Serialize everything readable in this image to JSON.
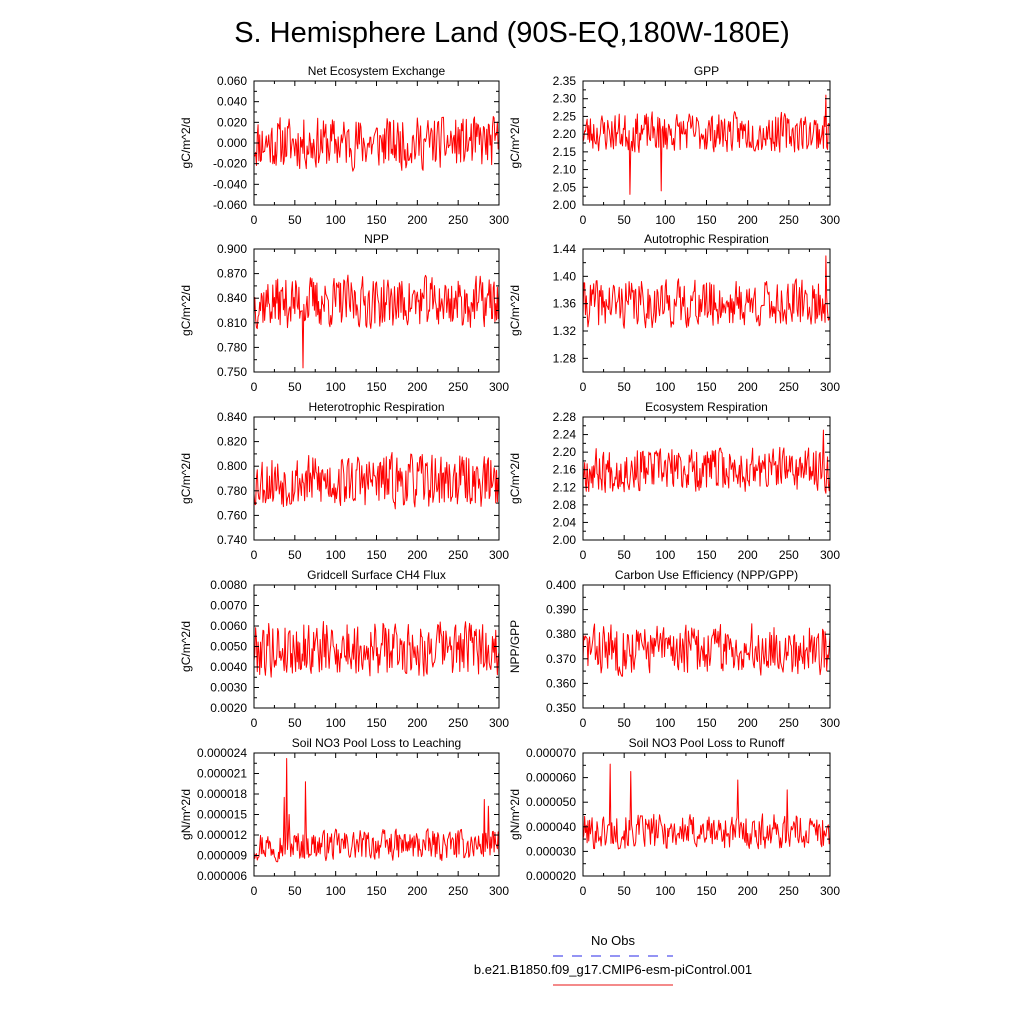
{
  "page": {
    "title": "S. Hemisphere Land (90S-EQ,180W-180E)",
    "legend": [
      {
        "label": "No Obs",
        "color": "#5555ee",
        "style": "dashed"
      },
      {
        "label": "b.e21.B1850.f09_g17.CMIP6-esm-piControl.001",
        "color": "#ee4444",
        "style": "solid"
      }
    ],
    "line_color": "#ff0000"
  },
  "chart_data": [
    {
      "type": "line",
      "title": "Net Ecosystem Exchange",
      "xlabel": "",
      "ylabel": "gC/m^2/d",
      "xlim": [
        0,
        300
      ],
      "xticks": [
        "0",
        "50",
        "100",
        "150",
        "200",
        "250",
        "300"
      ],
      "ylim": [
        -0.06,
        0.06
      ],
      "yticks": [
        "-0.060",
        "-0.040",
        "-0.020",
        "0.000",
        "0.020",
        "0.040",
        "0.060"
      ],
      "series": [
        {
          "name": "b.e21.B1850.f09_g17.CMIP6-esm-piControl.001",
          "mean": 0.0,
          "amp": 0.016,
          "min": -0.043,
          "max": 0.044,
          "seed": 11,
          "spikes": []
        }
      ]
    },
    {
      "type": "line",
      "title": "GPP",
      "xlabel": "",
      "ylabel": "gC/m^2/d",
      "xlim": [
        0,
        300
      ],
      "xticks": [
        "0",
        "50",
        "100",
        "150",
        "200",
        "250",
        "300"
      ],
      "ylim": [
        2.0,
        2.35
      ],
      "yticks": [
        "2.00",
        "2.05",
        "2.10",
        "2.15",
        "2.20",
        "2.25",
        "2.30",
        "2.35"
      ],
      "series": [
        {
          "name": "b.e21.B1850.f09_g17.CMIP6-esm-piControl.001",
          "mean": 2.205,
          "amp": 0.035,
          "min": 2.03,
          "max": 2.315,
          "seed": 23,
          "spikes": [
            [
              295,
              2.31
            ],
            [
              57,
              2.03
            ],
            [
              95,
              2.04
            ]
          ]
        }
      ]
    },
    {
      "type": "line",
      "title": "NPP",
      "xlabel": "",
      "ylabel": "gC/m^2/d",
      "xlim": [
        0,
        300
      ],
      "xticks": [
        "0",
        "50",
        "100",
        "150",
        "200",
        "250",
        "300"
      ],
      "ylim": [
        0.75,
        0.9
      ],
      "yticks": [
        "0.750",
        "0.780",
        "0.810",
        "0.840",
        "0.870",
        "0.900"
      ],
      "series": [
        {
          "name": "b.e21.B1850.f09_g17.CMIP6-esm-piControl.001",
          "mean": 0.835,
          "amp": 0.02,
          "min": 0.755,
          "max": 0.89,
          "seed": 37,
          "spikes": [
            [
              60,
              0.755
            ]
          ]
        }
      ]
    },
    {
      "type": "line",
      "title": "Autotrophic Respiration",
      "xlabel": "",
      "ylabel": "gC/m^2/d",
      "xlim": [
        0,
        300
      ],
      "xticks": [
        "0",
        "50",
        "100",
        "150",
        "200",
        "250",
        "300"
      ],
      "ylim": [
        1.26,
        1.44
      ],
      "yticks": [
        "1.28",
        "1.32",
        "1.36",
        "1.40",
        "1.44"
      ],
      "series": [
        {
          "name": "b.e21.B1850.f09_g17.CMIP6-esm-piControl.001",
          "mean": 1.36,
          "amp": 0.022,
          "min": 1.278,
          "max": 1.432,
          "seed": 41,
          "spikes": [
            [
              295,
              1.43
            ]
          ]
        }
      ]
    },
    {
      "type": "line",
      "title": "Heterotrophic Respiration",
      "xlabel": "",
      "ylabel": "gC/m^2/d",
      "xlim": [
        0,
        300
      ],
      "xticks": [
        "0",
        "50",
        "100",
        "150",
        "200",
        "250",
        "300"
      ],
      "ylim": [
        0.74,
        0.84
      ],
      "yticks": [
        "0.740",
        "0.760",
        "0.780",
        "0.800",
        "0.820",
        "0.840"
      ],
      "series": [
        {
          "name": "b.e21.B1850.f09_g17.CMIP6-esm-piControl.001",
          "mean": 0.788,
          "amp": 0.014,
          "min": 0.745,
          "max": 0.828,
          "seed": 53,
          "spikes": []
        }
      ]
    },
    {
      "type": "line",
      "title": "Ecosystem Respiration",
      "xlabel": "",
      "ylabel": "gC/m^2/d",
      "xlim": [
        0,
        300
      ],
      "xticks": [
        "0",
        "50",
        "100",
        "150",
        "200",
        "250",
        "300"
      ],
      "ylim": [
        2.0,
        2.28
      ],
      "yticks": [
        "2.00",
        "2.04",
        "2.08",
        "2.12",
        "2.16",
        "2.20",
        "2.24",
        "2.28"
      ],
      "series": [
        {
          "name": "b.e21.B1850.f09_g17.CMIP6-esm-piControl.001",
          "mean": 2.16,
          "amp": 0.032,
          "min": 2.03,
          "max": 2.25,
          "seed": 67,
          "spikes": [
            [
              292,
              2.25
            ]
          ]
        }
      ]
    },
    {
      "type": "line",
      "title": "Gridcell Surface CH4 Flux",
      "xlabel": "",
      "ylabel": "gC/m^2/d",
      "xlim": [
        0,
        300
      ],
      "xticks": [
        "0",
        "50",
        "100",
        "150",
        "200",
        "250",
        "300"
      ],
      "ylim": [
        0.002,
        0.008
      ],
      "yticks": [
        "0.0020",
        "0.0030",
        "0.0040",
        "0.0050",
        "0.0060",
        "0.0070",
        "0.0080"
      ],
      "series": [
        {
          "name": "b.e21.B1850.f09_g17.CMIP6-esm-piControl.001",
          "mean": 0.0049,
          "amp": 0.00085,
          "min": 0.003,
          "max": 0.0073,
          "seed": 79,
          "spikes": []
        }
      ]
    },
    {
      "type": "line",
      "title": "Carbon Use Efficiency (NPP/GPP)",
      "xlabel": "",
      "ylabel": "NPP/GPP",
      "xlim": [
        0,
        300
      ],
      "xticks": [
        "0",
        "50",
        "100",
        "150",
        "200",
        "250",
        "300"
      ],
      "ylim": [
        0.35,
        0.4
      ],
      "yticks": [
        "0.350",
        "0.360",
        "0.370",
        "0.380",
        "0.390",
        "0.400"
      ],
      "series": [
        {
          "name": "b.e21.B1850.f09_g17.CMIP6-esm-piControl.001",
          "mean": 0.374,
          "amp": 0.0065,
          "min": 0.355,
          "max": 0.393,
          "seed": 83,
          "spikes": []
        }
      ]
    },
    {
      "type": "line",
      "title": "Soil NO3 Pool Loss to Leaching",
      "xlabel": "",
      "ylabel": "gN/m^2/d",
      "xlim": [
        0,
        300
      ],
      "xticks": [
        "0",
        "50",
        "100",
        "150",
        "200",
        "250",
        "300"
      ],
      "ylim": [
        6e-06,
        2.4e-05
      ],
      "yticks": [
        "0.000006",
        "0.000009",
        "0.000012",
        "0.000015",
        "0.000018",
        "0.000021",
        "0.000024"
      ],
      "series": [
        {
          "name": "b.e21.B1850.f09_g17.CMIP6-esm-piControl.001",
          "mean": 1.05e-05,
          "amp": 1.4e-06,
          "min": 6.5e-06,
          "max": 2.32e-05,
          "seed": 97,
          "spikes": [
            [
              37,
              1.75e-05
            ],
            [
              40,
              2.32e-05
            ],
            [
              43,
              1.5e-05
            ],
            [
              63,
              1.98e-05
            ],
            [
              282,
              1.72e-05
            ],
            [
              287,
              1.62e-05
            ]
          ]
        }
      ]
    },
    {
      "type": "line",
      "title": "Soil NO3 Pool Loss to Runoff",
      "xlabel": "",
      "ylabel": "gN/m^2/d",
      "xlim": [
        0,
        300
      ],
      "xticks": [
        "0",
        "50",
        "100",
        "150",
        "200",
        "250",
        "300"
      ],
      "ylim": [
        2e-05,
        7e-05
      ],
      "yticks": [
        "0.000020",
        "0.000030",
        "0.000040",
        "0.000050",
        "0.000060",
        "0.000070"
      ],
      "series": [
        {
          "name": "b.e21.B1850.f09_g17.CMIP6-esm-piControl.001",
          "mean": 3.8e-05,
          "amp": 4.5e-06,
          "min": 2.4e-05,
          "max": 6.5e-05,
          "seed": 101,
          "spikes": [
            [
              33,
              6.55e-05
            ],
            [
              58,
              6.25e-05
            ],
            [
              188,
              5.9e-05
            ],
            [
              248,
              5.5e-05
            ]
          ]
        }
      ]
    }
  ]
}
